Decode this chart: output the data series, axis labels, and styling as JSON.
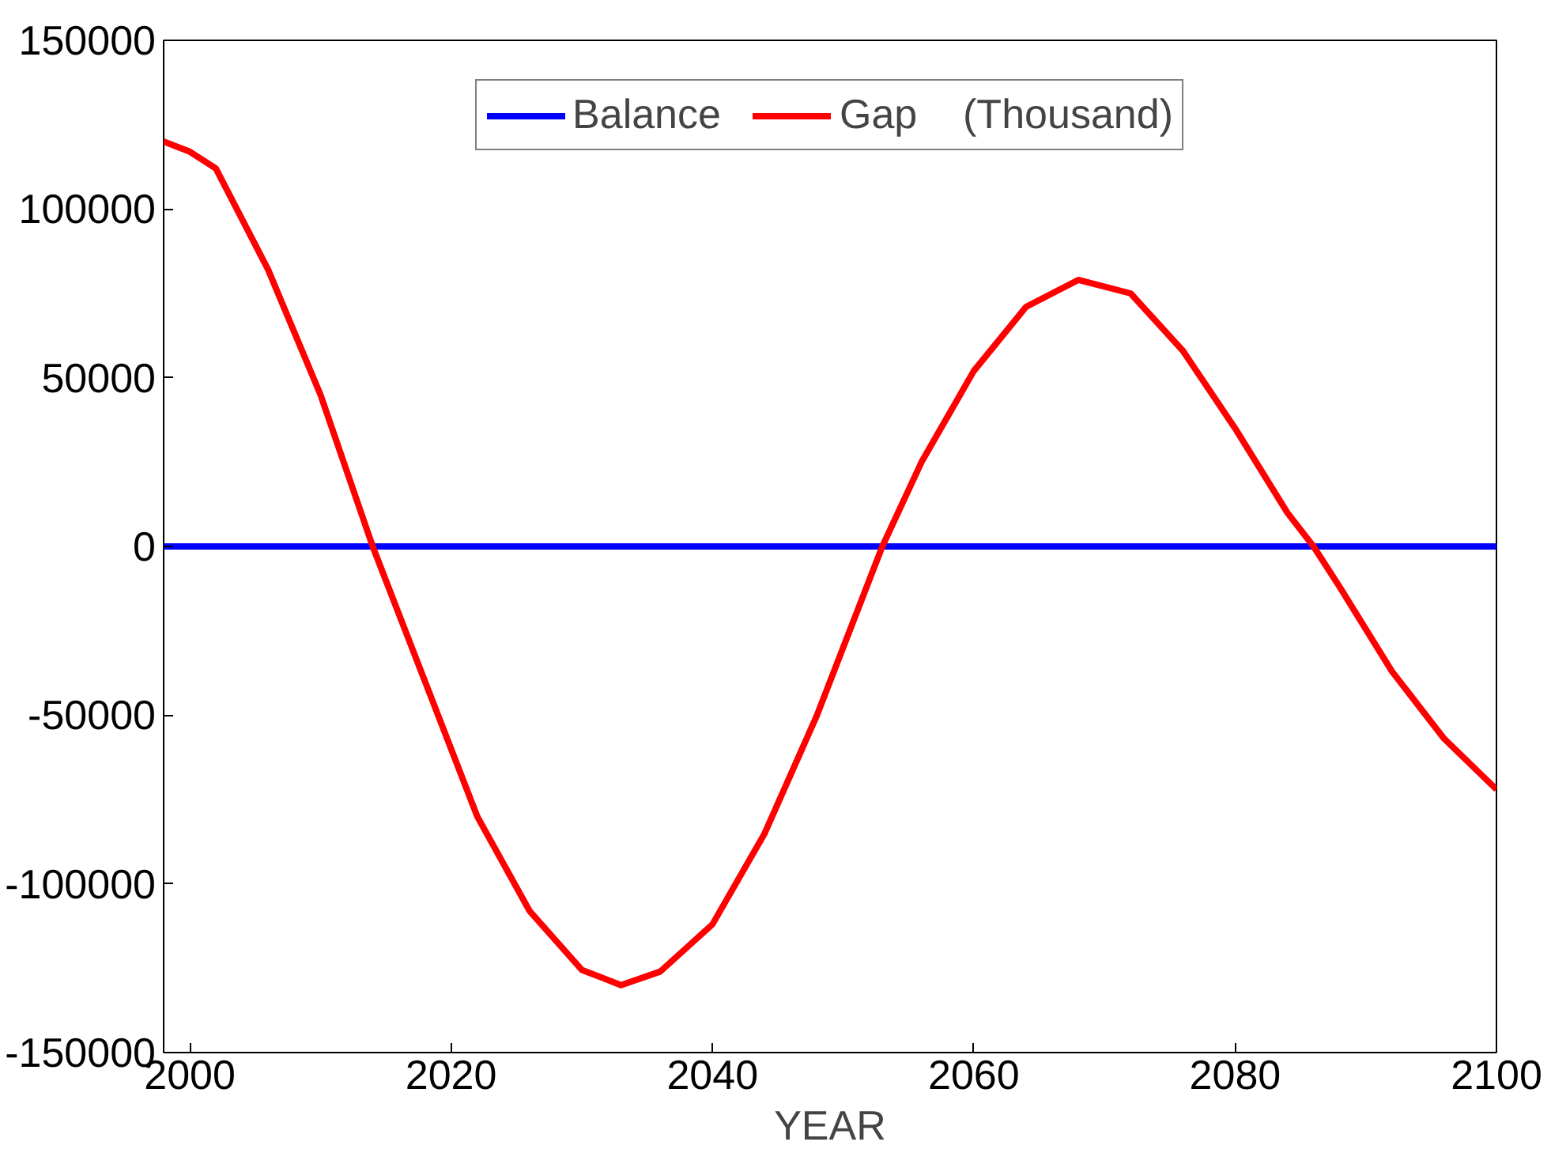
{
  "chart_data": {
    "type": "line",
    "xlabel": "YEAR",
    "xlim": [
      1998,
      2100
    ],
    "ylim": [
      -150000,
      150000
    ],
    "xticks": [
      2000,
      2020,
      2040,
      2060,
      2080,
      2100
    ],
    "yticks": [
      -150000,
      -100000,
      -50000,
      0,
      50000,
      100000,
      150000
    ],
    "grid": false,
    "legend": "top",
    "line_style": "solid",
    "marker": "none",
    "series": [
      {
        "name": "Balance",
        "color": "#0000ff",
        "x": [
          1998,
          2100
        ],
        "values": [
          0,
          0
        ]
      },
      {
        "name": "Gap    (Thousand)",
        "color": "#ff0000",
        "x": [
          1998,
          2000,
          2002,
          2006,
          2010,
          2014,
          2018,
          2022,
          2026,
          2030,
          2033,
          2036,
          2040,
          2044,
          2048,
          2052,
          2053,
          2056,
          2060,
          2064,
          2068,
          2072,
          2076,
          2080,
          2084,
          2086,
          2088,
          2092,
          2096,
          2100
        ],
        "values": [
          120000,
          117000,
          112000,
          82000,
          45000,
          0,
          -40000,
          -80000,
          -108000,
          -125500,
          -130000,
          -126000,
          -112000,
          -85000,
          -50000,
          -10000,
          0,
          25000,
          52000,
          71000,
          79000,
          75000,
          58000,
          35000,
          10000,
          0,
          -12000,
          -37000,
          -57000,
          -72000
        ]
      }
    ]
  }
}
